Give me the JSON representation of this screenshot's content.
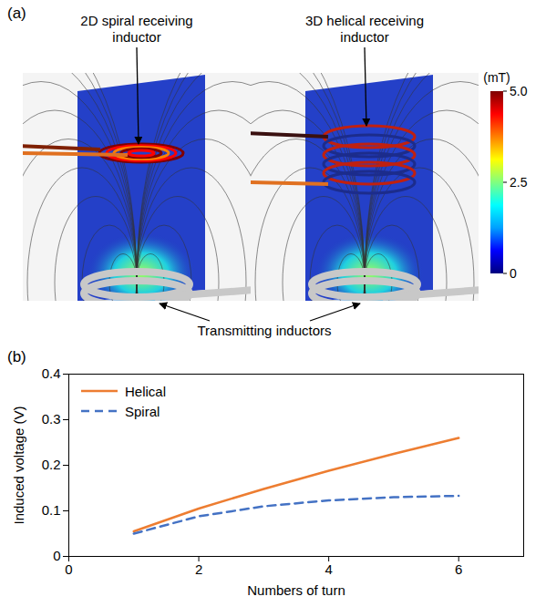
{
  "panel_a": {
    "label": "(a)",
    "views": [
      {
        "title": "2D spiral receiving inductor",
        "type": "spiral"
      },
      {
        "title": "3D helical receiving inductor",
        "type": "helical"
      }
    ],
    "bottom_label": "Transmitting inductors",
    "colorbar": {
      "title": "(mT)",
      "range": [
        0,
        5
      ],
      "ticks": [
        {
          "value": 5,
          "label": "5.0"
        },
        2.5,
        0
      ]
    }
  },
  "chart_data": {
    "type": "line",
    "panel_label": "(b)",
    "xlabel": "Numbers of turn",
    "ylabel": "Induced voltage (V)",
    "x": [
      1,
      2,
      3,
      4,
      5,
      6
    ],
    "series": [
      {
        "name": "Helical",
        "color": "#ed7d31",
        "line_style": "solid",
        "values": [
          0.055,
          0.105,
          0.148,
          0.188,
          0.225,
          0.26
        ]
      },
      {
        "name": "Spiral",
        "color": "#4472c4",
        "line_style": "dashed",
        "values": [
          0.05,
          0.088,
          0.11,
          0.123,
          0.13,
          0.133
        ]
      }
    ],
    "xlim": [
      0,
      7
    ],
    "xticks": [
      0,
      2,
      4,
      6
    ],
    "ylim": [
      0,
      0.4
    ],
    "yticks": [
      0,
      0.1,
      0.2,
      0.3,
      0.4
    ],
    "legend": "top-left",
    "grid": false
  }
}
